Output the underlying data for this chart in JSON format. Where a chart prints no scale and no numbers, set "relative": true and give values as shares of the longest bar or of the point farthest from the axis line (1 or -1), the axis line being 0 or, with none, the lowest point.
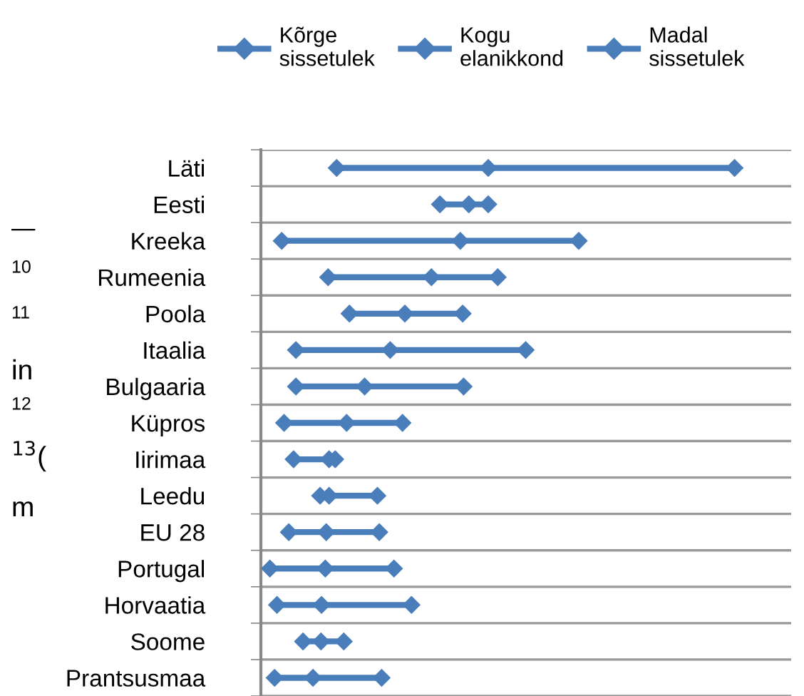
{
  "chart_data": {
    "type": "scatter",
    "relative": true,
    "orientation": "horizontal",
    "marker": "diamond",
    "legend": "top",
    "grid": "y",
    "tick_labels": "y",
    "categories": [
      "Läti",
      "Eesti",
      "Kreeka",
      "Rumeenia",
      "Poola",
      "Itaalia",
      "Bulgaaria",
      "Küpros",
      "Iirimaa",
      "Leedu",
      "EU 28",
      "Portugal",
      "Horvaatia",
      "Soome",
      "Prantsusmaa"
    ],
    "series": [
      {
        "name": "Kõrge\nsissetulek",
        "color": "#4a7ebb",
        "values": [
          0.16,
          0.378,
          0.044,
          0.142,
          0.187,
          0.074,
          0.074,
          0.049,
          0.069,
          0.125,
          0.059,
          0.019,
          0.034,
          0.089,
          0.029
        ]
      },
      {
        "name": "Kogu\nelanikkond",
        "color": "#4a7ebb",
        "values": [
          0.48,
          0.439,
          0.421,
          0.36,
          0.304,
          0.273,
          0.219,
          0.181,
          0.144,
          0.144,
          0.138,
          0.136,
          0.128,
          0.127,
          0.11
        ]
      },
      {
        "name": "Madal\nsissetulek",
        "color": "#4a7ebb",
        "values": [
          1,
          0.48,
          0.671,
          0.5,
          0.426,
          0.559,
          0.428,
          0.299,
          0.157,
          0.246,
          0.25,
          0.281,
          0.318,
          0.175,
          0.255
        ]
      }
    ],
    "annotations": [
      "—",
      "10",
      "11",
      "in",
      "12",
      "$^{13}$(",
      "m"
    ]
  }
}
